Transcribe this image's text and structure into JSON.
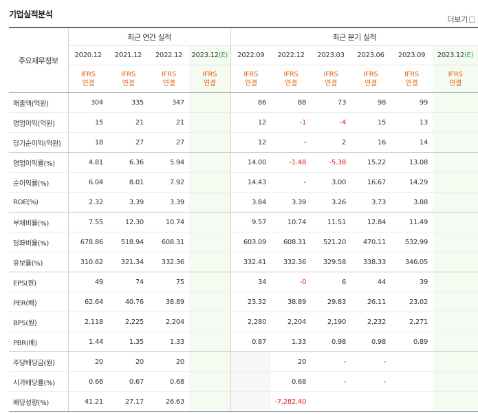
{
  "section_title": "기업실적분석",
  "more_label": "더보기",
  "header": {
    "label_column": "주요재무정보",
    "annual_group": "최근 연간 실적",
    "quarterly_group": "최근 분기 실적",
    "periods": [
      "2020.12",
      "2021.12",
      "2022.12",
      "2023.12",
      "2022.09",
      "2022.12",
      "2023.03",
      "2023.06",
      "2023.09",
      "2023.12"
    ],
    "estimate_mark": "(E)",
    "ifrs_line1": "IFRS",
    "ifrs_line2": "연결"
  },
  "rows": [
    {
      "label": "매출액(억원)",
      "values": [
        "304",
        "335",
        "347",
        "",
        "86",
        "88",
        "73",
        "98",
        "99",
        ""
      ]
    },
    {
      "label": "영업이익(억원)",
      "values": [
        "15",
        "21",
        "21",
        "",
        "12",
        "-1",
        "-4",
        "15",
        "13",
        ""
      ]
    },
    {
      "label": "당기순이익(억원)",
      "values": [
        "18",
        "27",
        "27",
        "",
        "12",
        "-",
        "2",
        "16",
        "14",
        ""
      ]
    },
    {
      "label": "영업이익률(%)",
      "values": [
        "4.81",
        "6.36",
        "5.94",
        "",
        "14.00",
        "-1.48",
        "-5.38",
        "15.22",
        "13.08",
        ""
      ]
    },
    {
      "label": "순이익률(%)",
      "values": [
        "6.04",
        "8.01",
        "7.92",
        "",
        "14.43",
        "-",
        "3.00",
        "16.67",
        "14.29",
        ""
      ]
    },
    {
      "label": "ROE(%)",
      "values": [
        "2.32",
        "3.39",
        "3.39",
        "",
        "3.84",
        "3.39",
        "3.26",
        "3.73",
        "3.88",
        ""
      ]
    },
    {
      "label": "부채비율(%)",
      "values": [
        "7.55",
        "12.30",
        "10.74",
        "",
        "9.57",
        "10.74",
        "11.51",
        "12.84",
        "11.49",
        ""
      ]
    },
    {
      "label": "당좌비율(%)",
      "values": [
        "678.86",
        "518.94",
        "608.31",
        "",
        "603.09",
        "608.31",
        "521.20",
        "470.11",
        "532.99",
        ""
      ]
    },
    {
      "label": "유보율(%)",
      "values": [
        "310.62",
        "321.34",
        "332.36",
        "",
        "332.41",
        "332.36",
        "329.58",
        "338.33",
        "346.05",
        ""
      ]
    },
    {
      "label": "EPS(원)",
      "values": [
        "49",
        "74",
        "75",
        "",
        "34",
        "-0",
        "6",
        "44",
        "39",
        ""
      ]
    },
    {
      "label": "PER(배)",
      "values": [
        "62.64",
        "40.76",
        "38.89",
        "",
        "23.32",
        "38.89",
        "29.83",
        "26.11",
        "23.02",
        ""
      ]
    },
    {
      "label": "BPS(원)",
      "values": [
        "2,118",
        "2,225",
        "2,204",
        "",
        "2,280",
        "2,204",
        "2,190",
        "2,232",
        "2,271",
        ""
      ]
    },
    {
      "label": "PBR(배)",
      "values": [
        "1.44",
        "1.35",
        "1.33",
        "",
        "0.87",
        "1.33",
        "0.98",
        "0.98",
        "0.89",
        ""
      ]
    },
    {
      "label": "주당배당금(원)",
      "values": [
        "20",
        "20",
        "20",
        "",
        "",
        "20",
        "-",
        "-",
        "",
        ""
      ]
    },
    {
      "label": "시가배당률(%)",
      "values": [
        "0.66",
        "0.67",
        "0.68",
        "",
        "",
        "0.68",
        "-",
        "-",
        "",
        ""
      ]
    },
    {
      "label": "배당성향(%)",
      "values": [
        "41.21",
        "27.17",
        "26.63",
        "",
        "",
        "-7,282.40",
        "",
        "",
        "",
        ""
      ]
    }
  ],
  "colors": {
    "negative": "#e02020",
    "ifrs": "#e0610e",
    "estimate_bg": "#f4fbf1",
    "estimate_mark": "#3a9a3a"
  }
}
